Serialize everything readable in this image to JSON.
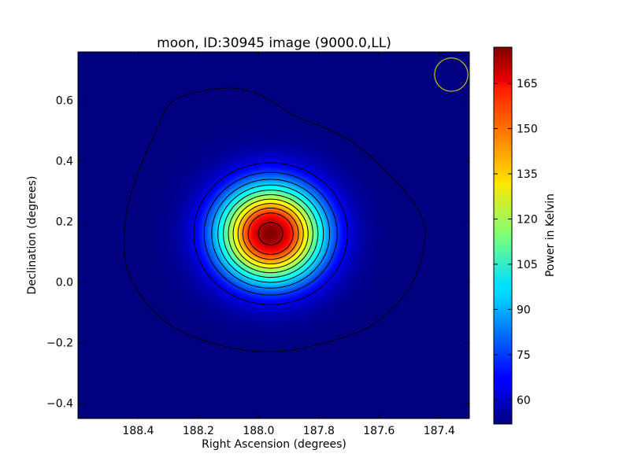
{
  "chart_data": {
    "type": "heatmap",
    "title": "moon, ID:30945 image (9000.0,LL)",
    "xlabel": "Right Ascension (degrees)",
    "ylabel": "Declination (degrees)",
    "xlim": [
      188.6,
      187.3
    ],
    "ylim": [
      -0.45,
      0.76
    ],
    "x_reversed": true,
    "x_ticks": [
      188.4,
      188.2,
      188.0,
      187.8,
      187.6,
      187.4
    ],
    "x_tick_labels": [
      "188.4",
      "188.2",
      "188.0",
      "187.8",
      "187.6",
      "187.4"
    ],
    "y_ticks": [
      -0.4,
      -0.2,
      0.0,
      0.2,
      0.4,
      0.6
    ],
    "y_tick_labels": [
      "−0.4",
      "−0.2",
      "0.0",
      "0.2",
      "0.4",
      "0.6"
    ],
    "colormap": "jet",
    "colorbar": {
      "label": "Power in Kelvin",
      "range": [
        52,
        177
      ],
      "ticks": [
        60,
        75,
        90,
        105,
        120,
        135,
        150,
        165
      ],
      "tick_labels": [
        "60",
        "75",
        "90",
        "105",
        "120",
        "135",
        "150",
        "165"
      ]
    },
    "source": {
      "center_ra": 187.96,
      "center_dec": 0.16,
      "peak_kelvin": 177,
      "background_kelvin": 52,
      "sigma_ra_deg": 0.12,
      "sigma_dec_deg": 0.11
    },
    "contour_levels": [
      55,
      65,
      75,
      85,
      95,
      105,
      115,
      125,
      135,
      145,
      155,
      170
    ],
    "outer_contour": [
      [
        188.28,
        0.6
      ],
      [
        188.12,
        0.64
      ],
      [
        188.0,
        0.62
      ],
      [
        187.88,
        0.55
      ],
      [
        187.7,
        0.47
      ],
      [
        187.55,
        0.34
      ],
      [
        187.46,
        0.22
      ],
      [
        187.45,
        0.12
      ],
      [
        187.5,
        -0.02
      ],
      [
        187.62,
        -0.14
      ],
      [
        187.78,
        -0.2
      ],
      [
        187.95,
        -0.23
      ],
      [
        188.12,
        -0.21
      ],
      [
        188.28,
        -0.15
      ],
      [
        188.38,
        -0.06
      ],
      [
        188.44,
        0.06
      ],
      [
        188.44,
        0.22
      ],
      [
        188.4,
        0.36
      ],
      [
        188.34,
        0.5
      ]
    ],
    "beam": {
      "ra": 187.36,
      "dec": 0.685,
      "radius_deg": 0.055,
      "color": "#c8c800"
    }
  }
}
